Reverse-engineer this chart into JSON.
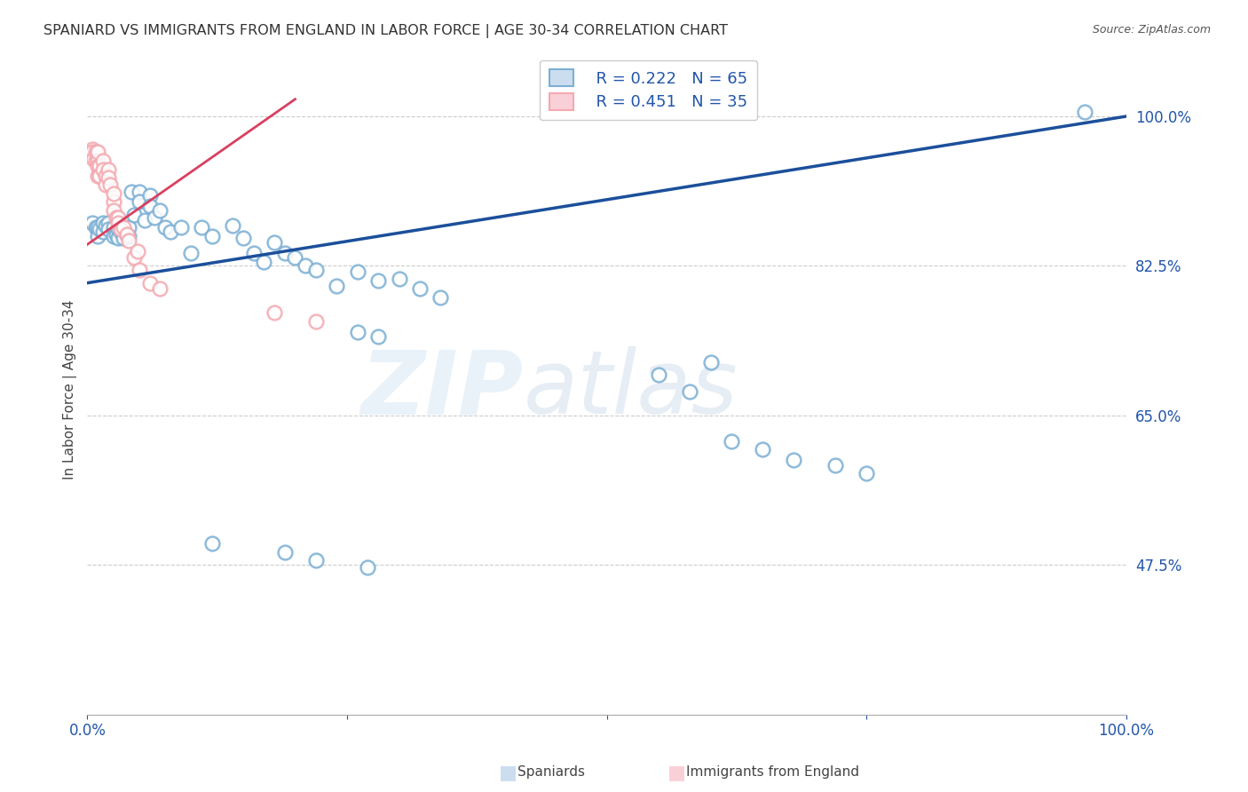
{
  "title": "SPANIARD VS IMMIGRANTS FROM ENGLAND IN LABOR FORCE | AGE 30-34 CORRELATION CHART",
  "source": "Source: ZipAtlas.com",
  "ylabel": "In Labor Force | Age 30-34",
  "xlim": [
    0,
    1.0
  ],
  "ylim": [
    0.3,
    1.06
  ],
  "y_ticks": [
    0.475,
    0.65,
    0.825,
    1.0
  ],
  "y_tick_labels": [
    "47.5%",
    "65.0%",
    "82.5%",
    "100.0%"
  ],
  "x_ticks": [
    0.0,
    0.25,
    0.5,
    0.75,
    1.0
  ],
  "x_tick_labels": [
    "0.0%",
    "",
    "",
    "",
    "100.0%"
  ],
  "blue_color": "#7BAFD4",
  "pink_color": "#F4A8B0",
  "line_blue_color": "#1B4F9B",
  "line_pink_color": "#D94060",
  "blue_line_x0": 0.0,
  "blue_line_y0": 0.805,
  "blue_line_x1": 1.0,
  "blue_line_y1": 1.0,
  "pink_line_x0": 0.0,
  "pink_line_y0": 0.85,
  "pink_line_x1": 0.2,
  "pink_line_y1": 1.02,
  "blue_x": [
    0.005,
    0.008,
    0.01,
    0.01,
    0.012,
    0.015,
    0.015,
    0.018,
    0.02,
    0.02,
    0.025,
    0.025,
    0.028,
    0.03,
    0.03,
    0.032,
    0.035,
    0.038,
    0.04,
    0.04,
    0.042,
    0.045,
    0.05,
    0.05,
    0.055,
    0.06,
    0.06,
    0.065,
    0.07,
    0.075,
    0.08,
    0.09,
    0.1,
    0.11,
    0.12,
    0.14,
    0.15,
    0.16,
    0.17,
    0.18,
    0.19,
    0.2,
    0.21,
    0.22,
    0.24,
    0.26,
    0.28,
    0.3,
    0.32,
    0.34,
    0.26,
    0.28,
    0.55,
    0.58,
    0.6,
    0.62,
    0.65,
    0.68,
    0.72,
    0.75,
    0.12,
    0.19,
    0.22,
    0.27,
    0.96
  ],
  "blue_y": [
    0.875,
    0.87,
    0.87,
    0.86,
    0.868,
    0.875,
    0.865,
    0.872,
    0.875,
    0.868,
    0.87,
    0.86,
    0.862,
    0.868,
    0.858,
    0.865,
    0.858,
    0.862,
    0.87,
    0.86,
    0.912,
    0.885,
    0.912,
    0.9,
    0.878,
    0.908,
    0.895,
    0.882,
    0.89,
    0.87,
    0.865,
    0.87,
    0.84,
    0.87,
    0.86,
    0.872,
    0.858,
    0.84,
    0.83,
    0.852,
    0.84,
    0.835,
    0.825,
    0.82,
    0.802,
    0.818,
    0.808,
    0.81,
    0.798,
    0.788,
    0.748,
    0.742,
    0.698,
    0.678,
    0.712,
    0.62,
    0.61,
    0.598,
    0.592,
    0.582,
    0.5,
    0.49,
    0.48,
    0.472,
    1.005
  ],
  "pink_x": [
    0.005,
    0.005,
    0.006,
    0.008,
    0.008,
    0.01,
    0.01,
    0.01,
    0.01,
    0.012,
    0.012,
    0.015,
    0.015,
    0.018,
    0.018,
    0.02,
    0.02,
    0.022,
    0.025,
    0.025,
    0.025,
    0.028,
    0.03,
    0.03,
    0.032,
    0.035,
    0.038,
    0.04,
    0.045,
    0.048,
    0.05,
    0.06,
    0.07,
    0.18,
    0.22
  ],
  "pink_y": [
    0.962,
    0.958,
    0.95,
    0.958,
    0.948,
    0.948,
    0.958,
    0.942,
    0.93,
    0.942,
    0.93,
    0.948,
    0.938,
    0.93,
    0.92,
    0.938,
    0.928,
    0.92,
    0.9,
    0.91,
    0.89,
    0.882,
    0.882,
    0.875,
    0.868,
    0.87,
    0.862,
    0.855,
    0.835,
    0.842,
    0.82,
    0.805,
    0.798,
    0.77,
    0.76
  ]
}
